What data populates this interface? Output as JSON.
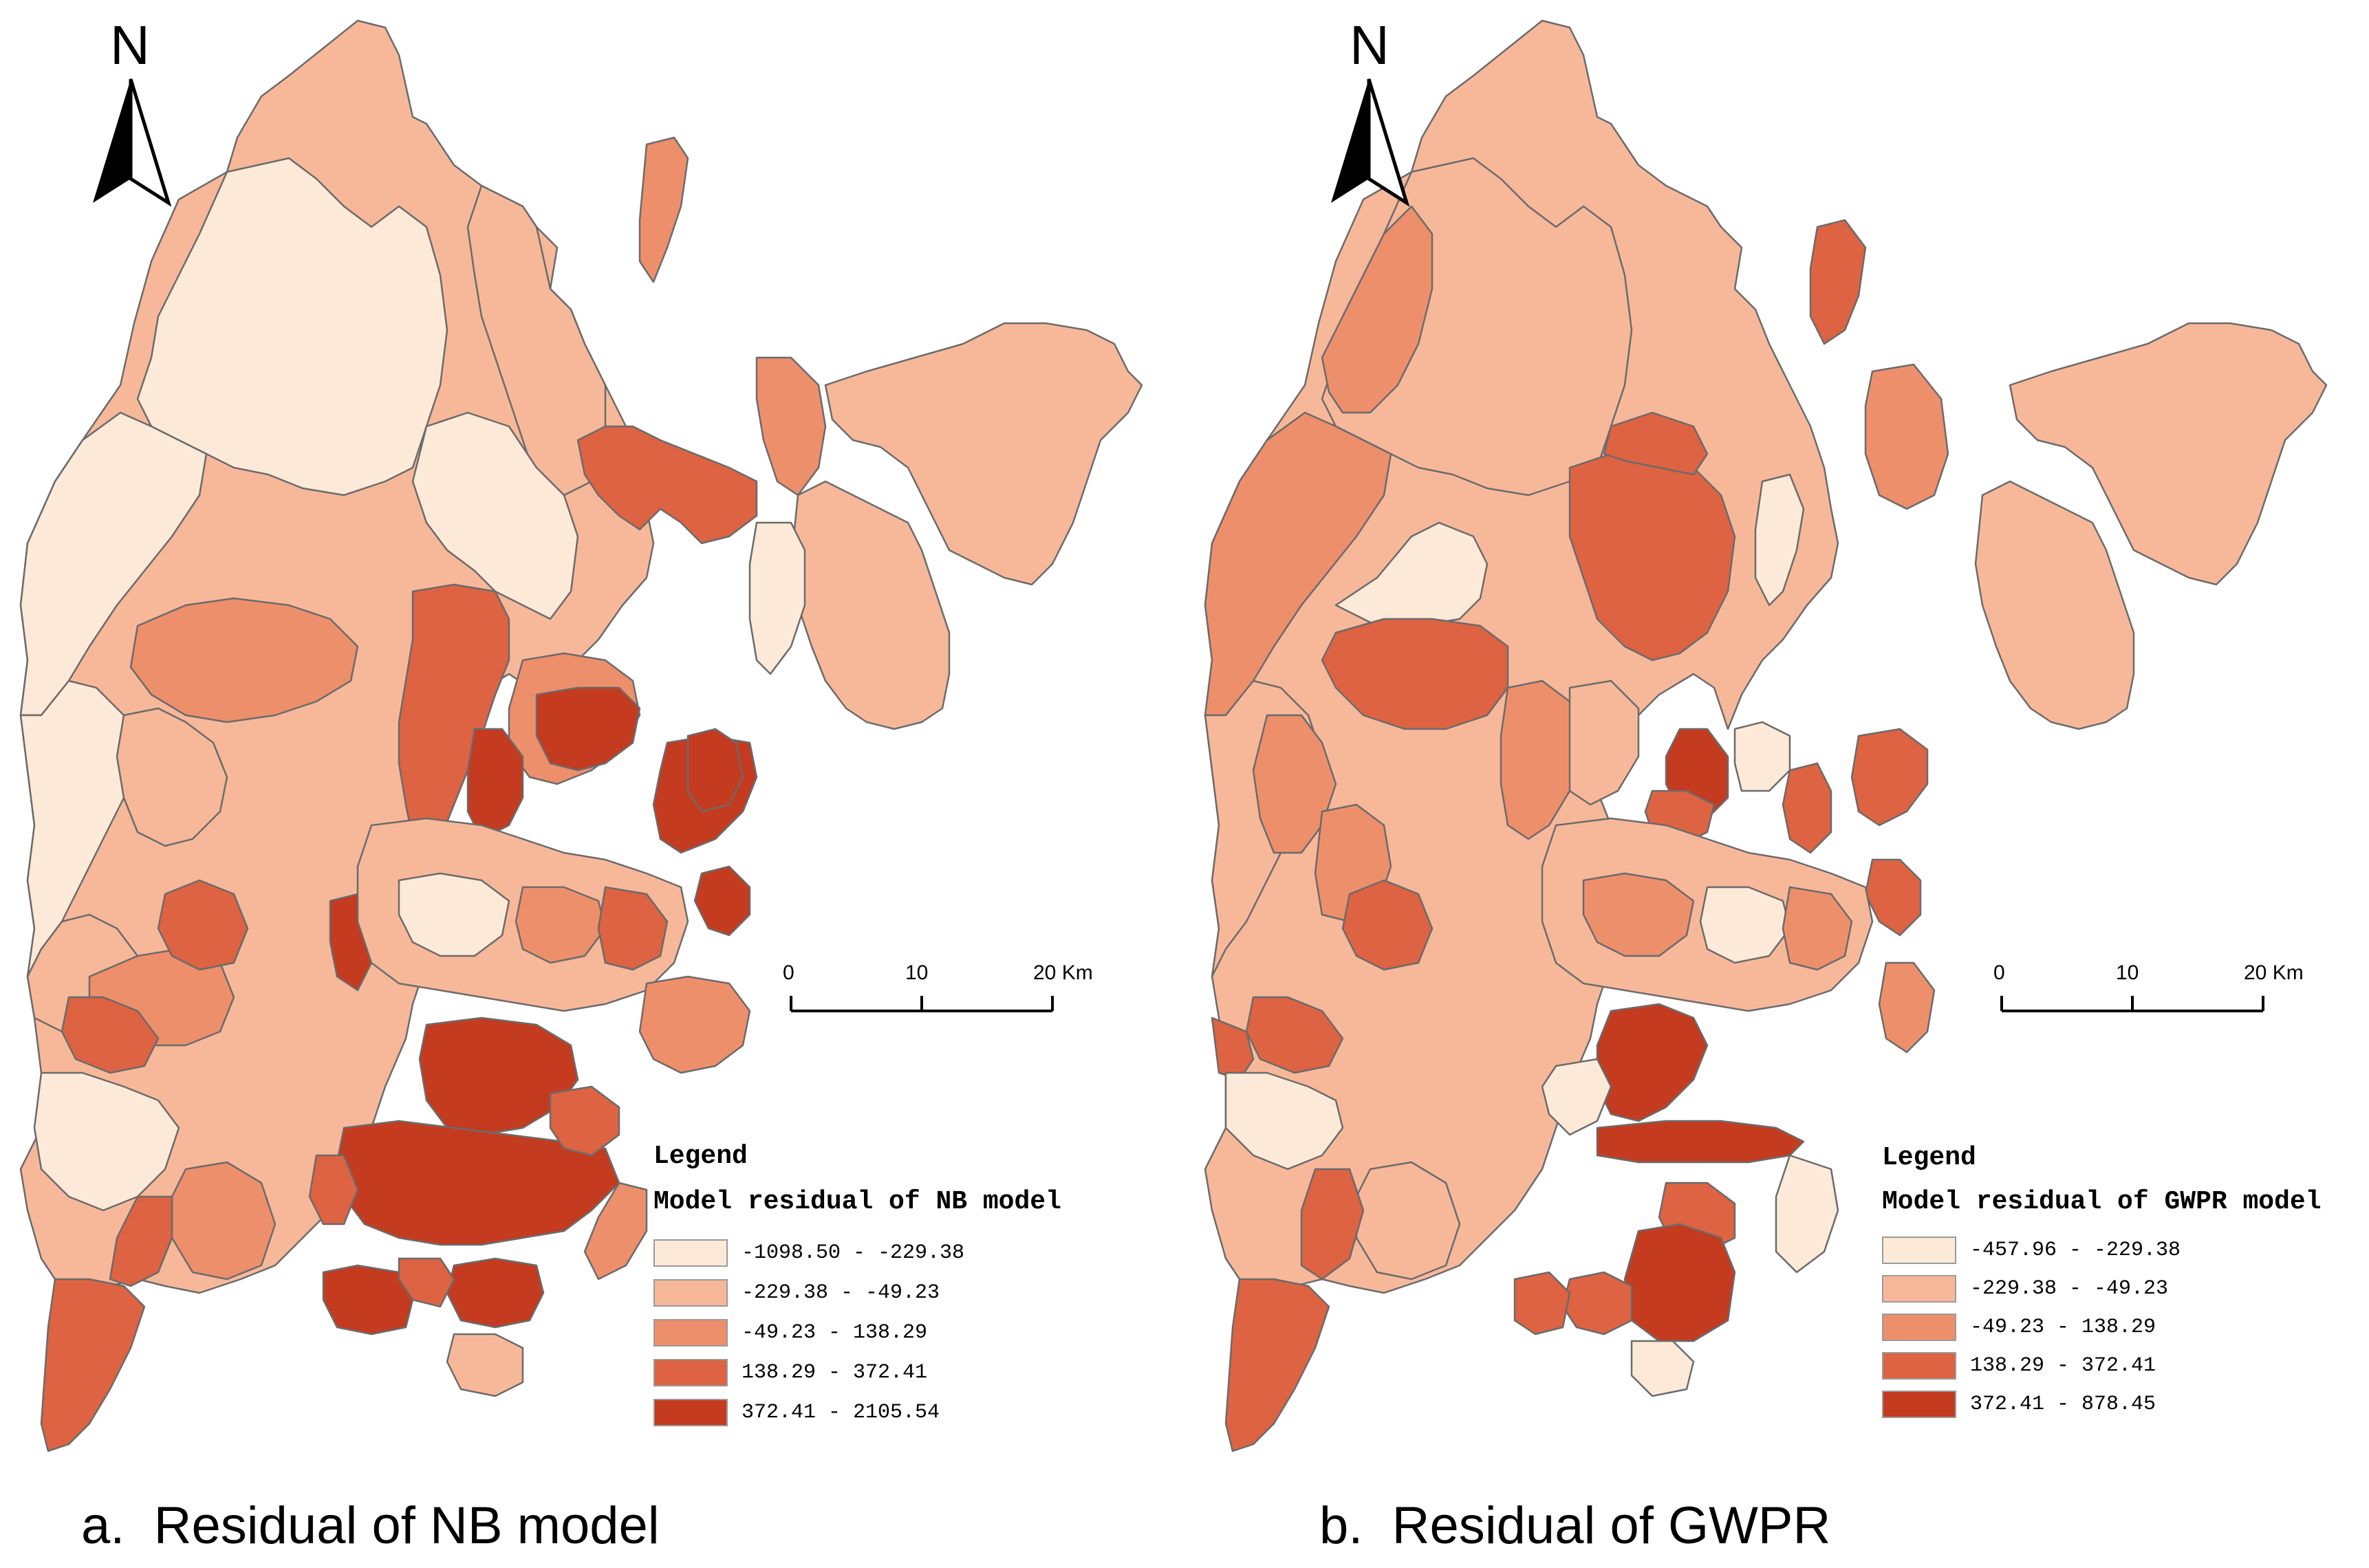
{
  "colors": {
    "class1": "#fde9d7",
    "class2": "#f7b89a",
    "class3": "#ee8f6c",
    "class4": "#dd6342",
    "class5": "#c43b1f",
    "border": "#6b6b6b"
  },
  "panels": [
    {
      "id": "a",
      "north_label": "N",
      "scale": {
        "ticks": [
          "0",
          "10",
          "20 Km"
        ]
      },
      "legend": {
        "title": "Legend",
        "subtitle": "Model residual of NB model",
        "classes": [
          {
            "label": "-1098.50 - -229.38",
            "color": "#fde9d7"
          },
          {
            "label": "-229.38 - -49.23",
            "color": "#f7b89a"
          },
          {
            "label": "-49.23 - 138.29",
            "color": "#ee8f6c"
          },
          {
            "label": "138.29 - 372.41",
            "color": "#dd6342"
          },
          {
            "label": "372.41 - 2105.54",
            "color": "#c43b1f"
          }
        ]
      },
      "caption_letter": "a.",
      "caption_text": "Residual of NB model"
    },
    {
      "id": "b",
      "north_label": "N",
      "scale": {
        "ticks": [
          "0",
          "10",
          "20 Km"
        ]
      },
      "legend": {
        "title": "Legend",
        "subtitle": "Model residual of GWPR model",
        "classes": [
          {
            "label": "-457.96 - -229.38",
            "color": "#fde9d7"
          },
          {
            "label": "-229.38 - -49.23",
            "color": "#f7b89a"
          },
          {
            "label": "-49.23 - 138.29",
            "color": "#ee8f6c"
          },
          {
            "label": "138.29 - 372.41",
            "color": "#dd6342"
          },
          {
            "label": "372.41 - 878.45",
            "color": "#c43b1f"
          }
        ]
      },
      "caption_letter": "b.",
      "caption_text": "Residual of GWPR"
    }
  ]
}
